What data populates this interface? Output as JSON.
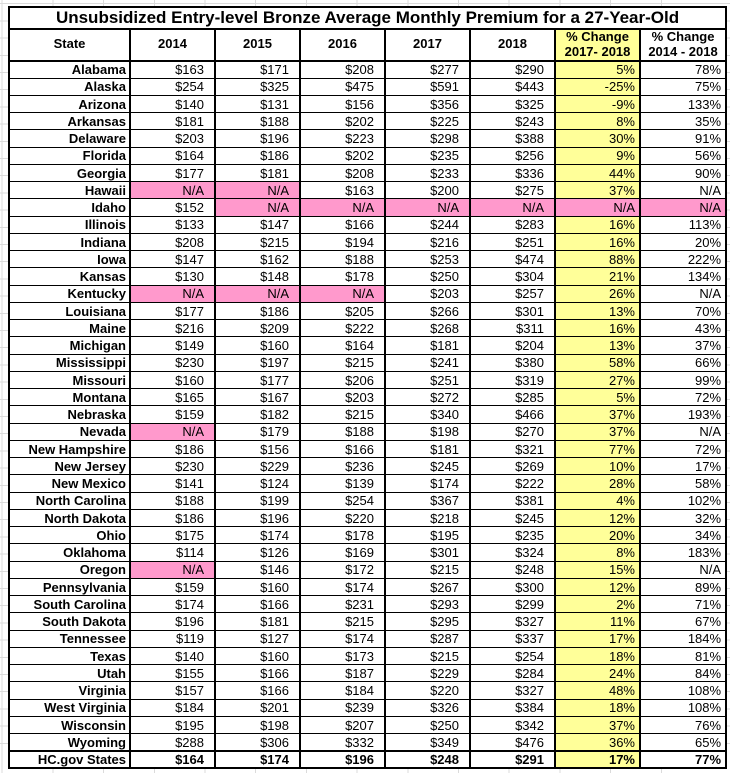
{
  "title": "Unsubsidized Entry-level Bronze Average Monthly Premium for a 27-Year-Old",
  "colors": {
    "highlight_yellow": "#FFFF99",
    "na_pink": "#FF99CC",
    "grid_line": "#DBDBDB",
    "border": "#000000"
  },
  "table": {
    "columns": [
      {
        "label": "State"
      },
      {
        "label": "2014"
      },
      {
        "label": "2015"
      },
      {
        "label": "2016"
      },
      {
        "label": "2017"
      },
      {
        "label": "2018"
      },
      {
        "label": "% Change",
        "sublabel": "2017- 2018",
        "highlight": true
      },
      {
        "label": "% Change",
        "sublabel": "2014 - 2018",
        "highlight": false
      }
    ],
    "rows": [
      {
        "state": "Alabama",
        "cells": [
          "$163",
          "$171",
          "$208",
          "$277",
          "$290",
          "5%",
          "78%"
        ],
        "pink": []
      },
      {
        "state": "Alaska",
        "cells": [
          "$254",
          "$325",
          "$475",
          "$591",
          "$443",
          "-25%",
          "75%"
        ],
        "pink": []
      },
      {
        "state": "Arizona",
        "cells": [
          "$140",
          "$131",
          "$156",
          "$356",
          "$325",
          "-9%",
          "133%"
        ],
        "pink": []
      },
      {
        "state": "Arkansas",
        "cells": [
          "$181",
          "$188",
          "$202",
          "$225",
          "$243",
          "8%",
          "35%"
        ],
        "pink": []
      },
      {
        "state": "Delaware",
        "cells": [
          "$203",
          "$196",
          "$223",
          "$298",
          "$388",
          "30%",
          "91%"
        ],
        "pink": []
      },
      {
        "state": "Florida",
        "cells": [
          "$164",
          "$186",
          "$202",
          "$235",
          "$256",
          "9%",
          "56%"
        ],
        "pink": []
      },
      {
        "state": "Georgia",
        "cells": [
          "$177",
          "$181",
          "$208",
          "$233",
          "$336",
          "44%",
          "90%"
        ],
        "pink": []
      },
      {
        "state": "Hawaii",
        "cells": [
          "N/A",
          "N/A",
          "$163",
          "$200",
          "$275",
          "37%",
          "N/A"
        ],
        "pink": [
          0,
          1
        ]
      },
      {
        "state": "Idaho",
        "cells": [
          "$152",
          "N/A",
          "N/A",
          "N/A",
          "N/A",
          "N/A",
          "N/A"
        ],
        "pink": [
          1,
          2,
          3,
          4,
          5,
          6
        ]
      },
      {
        "state": "Illinois",
        "cells": [
          "$133",
          "$147",
          "$166",
          "$244",
          "$283",
          "16%",
          "113%"
        ],
        "pink": []
      },
      {
        "state": "Indiana",
        "cells": [
          "$208",
          "$215",
          "$194",
          "$216",
          "$251",
          "16%",
          "20%"
        ],
        "pink": []
      },
      {
        "state": "Iowa",
        "cells": [
          "$147",
          "$162",
          "$188",
          "$253",
          "$474",
          "88%",
          "222%"
        ],
        "pink": []
      },
      {
        "state": "Kansas",
        "cells": [
          "$130",
          "$148",
          "$178",
          "$250",
          "$304",
          "21%",
          "134%"
        ],
        "pink": []
      },
      {
        "state": "Kentucky",
        "cells": [
          "N/A",
          "N/A",
          "N/A",
          "$203",
          "$257",
          "26%",
          "N/A"
        ],
        "pink": [
          0,
          1,
          2
        ]
      },
      {
        "state": "Louisiana",
        "cells": [
          "$177",
          "$186",
          "$205",
          "$266",
          "$301",
          "13%",
          "70%"
        ],
        "pink": []
      },
      {
        "state": "Maine",
        "cells": [
          "$216",
          "$209",
          "$222",
          "$268",
          "$311",
          "16%",
          "43%"
        ],
        "pink": []
      },
      {
        "state": "Michigan",
        "cells": [
          "$149",
          "$160",
          "$164",
          "$181",
          "$204",
          "13%",
          "37%"
        ],
        "pink": []
      },
      {
        "state": "Mississippi",
        "cells": [
          "$230",
          "$197",
          "$215",
          "$241",
          "$380",
          "58%",
          "66%"
        ],
        "pink": []
      },
      {
        "state": "Missouri",
        "cells": [
          "$160",
          "$177",
          "$206",
          "$251",
          "$319",
          "27%",
          "99%"
        ],
        "pink": []
      },
      {
        "state": "Montana",
        "cells": [
          "$165",
          "$167",
          "$203",
          "$272",
          "$285",
          "5%",
          "72%"
        ],
        "pink": []
      },
      {
        "state": "Nebraska",
        "cells": [
          "$159",
          "$182",
          "$215",
          "$340",
          "$466",
          "37%",
          "193%"
        ],
        "pink": []
      },
      {
        "state": "Nevada",
        "cells": [
          "N/A",
          "$179",
          "$188",
          "$198",
          "$270",
          "37%",
          "N/A"
        ],
        "pink": [
          0
        ]
      },
      {
        "state": "New Hampshire",
        "cells": [
          "$186",
          "$156",
          "$166",
          "$181",
          "$321",
          "77%",
          "72%"
        ],
        "pink": []
      },
      {
        "state": "New Jersey",
        "cells": [
          "$230",
          "$229",
          "$236",
          "$245",
          "$269",
          "10%",
          "17%"
        ],
        "pink": []
      },
      {
        "state": "New Mexico",
        "cells": [
          "$141",
          "$124",
          "$139",
          "$174",
          "$222",
          "28%",
          "58%"
        ],
        "pink": []
      },
      {
        "state": "North Carolina",
        "cells": [
          "$188",
          "$199",
          "$254",
          "$367",
          "$381",
          "4%",
          "102%"
        ],
        "pink": []
      },
      {
        "state": "North Dakota",
        "cells": [
          "$186",
          "$196",
          "$220",
          "$218",
          "$245",
          "12%",
          "32%"
        ],
        "pink": []
      },
      {
        "state": "Ohio",
        "cells": [
          "$175",
          "$174",
          "$178",
          "$195",
          "$235",
          "20%",
          "34%"
        ],
        "pink": []
      },
      {
        "state": "Oklahoma",
        "cells": [
          "$114",
          "$126",
          "$169",
          "$301",
          "$324",
          "8%",
          "183%"
        ],
        "pink": []
      },
      {
        "state": "Oregon",
        "cells": [
          "N/A",
          "$146",
          "$172",
          "$215",
          "$248",
          "15%",
          "N/A"
        ],
        "pink": [
          0
        ]
      },
      {
        "state": "Pennsylvania",
        "cells": [
          "$159",
          "$160",
          "$174",
          "$267",
          "$300",
          "12%",
          "89%"
        ],
        "pink": []
      },
      {
        "state": "South Carolina",
        "cells": [
          "$174",
          "$166",
          "$231",
          "$293",
          "$299",
          "2%",
          "71%"
        ],
        "pink": []
      },
      {
        "state": "South Dakota",
        "cells": [
          "$196",
          "$181",
          "$215",
          "$295",
          "$327",
          "11%",
          "67%"
        ],
        "pink": []
      },
      {
        "state": "Tennessee",
        "cells": [
          "$119",
          "$127",
          "$174",
          "$287",
          "$337",
          "17%",
          "184%"
        ],
        "pink": []
      },
      {
        "state": "Texas",
        "cells": [
          "$140",
          "$160",
          "$173",
          "$215",
          "$254",
          "18%",
          "81%"
        ],
        "pink": []
      },
      {
        "state": "Utah",
        "cells": [
          "$155",
          "$166",
          "$187",
          "$229",
          "$284",
          "24%",
          "84%"
        ],
        "pink": []
      },
      {
        "state": "Virginia",
        "cells": [
          "$157",
          "$166",
          "$184",
          "$220",
          "$327",
          "48%",
          "108%"
        ],
        "pink": []
      },
      {
        "state": "West Virginia",
        "cells": [
          "$184",
          "$201",
          "$239",
          "$326",
          "$384",
          "18%",
          "108%"
        ],
        "pink": []
      },
      {
        "state": "Wisconsin",
        "cells": [
          "$195",
          "$198",
          "$207",
          "$250",
          "$342",
          "37%",
          "76%"
        ],
        "pink": []
      },
      {
        "state": "Wyoming",
        "cells": [
          "$288",
          "$306",
          "$332",
          "$349",
          "$476",
          "36%",
          "65%"
        ],
        "pink": []
      },
      {
        "state": "HC.gov States",
        "cells": [
          "$164",
          "$174",
          "$196",
          "$248",
          "$291",
          "17%",
          "77%"
        ],
        "pink": [],
        "total": true
      }
    ]
  }
}
